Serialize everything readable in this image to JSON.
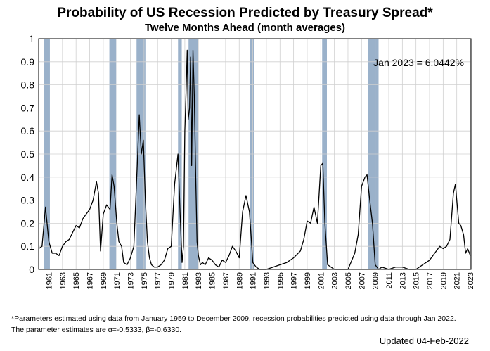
{
  "chart_data": {
    "type": "area",
    "title": "Probability of US Recession Predicted by Treasury Spread*",
    "subtitle": "Twelve Months Ahead (month averages)",
    "xlabel": "",
    "ylabel": "",
    "ylim": [
      0,
      1
    ],
    "xlim": [
      1959.5,
      2023.1
    ],
    "yticks": [
      "0",
      "0.1",
      "0.2",
      "0.3",
      "0.4",
      "0.5",
      "0.6",
      "0.7",
      "0.8",
      "0.9",
      "1"
    ],
    "xticks": [
      "1961",
      "1963",
      "1965",
      "1967",
      "1969",
      "1971",
      "1973",
      "1975",
      "1977",
      "1979",
      "1981",
      "1983",
      "1985",
      "1987",
      "1989",
      "1991",
      "1993",
      "1995",
      "1997",
      "1999",
      "2001",
      "2003",
      "2005",
      "2007",
      "2009",
      "2011",
      "2013",
      "2015",
      "2017",
      "2019",
      "2021",
      "2023"
    ],
    "grid": true,
    "annotation": "Jan 2023 = 6.0442%",
    "recessions": [
      [
        1960.3,
        1961.15
      ],
      [
        1969.9,
        1970.9
      ],
      [
        1973.9,
        1975.2
      ],
      [
        1980.0,
        1980.55
      ],
      [
        1981.55,
        1982.9
      ],
      [
        1990.55,
        1991.2
      ],
      [
        2001.2,
        2001.9
      ],
      [
        2007.95,
        2009.5
      ]
    ],
    "series": [
      {
        "x": [
          1959.5,
          1960.0,
          1960.5,
          1961.0,
          1961.5,
          1962.0,
          1962.5,
          1963.0,
          1963.5,
          1964.0,
          1964.5,
          1965.0,
          1965.5,
          1966.0,
          1966.5,
          1967.0,
          1967.5,
          1968.0,
          1968.3,
          1968.6,
          1969.0,
          1969.5,
          1970.0,
          1970.3,
          1970.6,
          1971.0,
          1971.3,
          1971.7,
          1972.0,
          1972.5,
          1973.0,
          1973.5,
          1974.0,
          1974.3,
          1974.6,
          1974.9,
          1975.2,
          1975.5,
          1975.8,
          1976.1,
          1976.5,
          1977.0,
          1977.5,
          1978.0,
          1978.5,
          1979.0,
          1979.5,
          1980.0,
          1980.3,
          1980.6,
          1980.8,
          1981.0,
          1981.2,
          1981.35,
          1981.5,
          1981.7,
          1981.85,
          1982.0,
          1982.2,
          1982.4,
          1982.6,
          1982.8,
          1983.0,
          1983.3,
          1983.6,
          1984.0,
          1984.5,
          1985.0,
          1985.5,
          1986.0,
          1986.5,
          1987.0,
          1987.5,
          1988.0,
          1988.5,
          1989.0,
          1989.5,
          1990.0,
          1990.5,
          1990.8,
          1991.0,
          1991.5,
          1992.0,
          1993.0,
          1994.0,
          1995.0,
          1996.0,
          1997.0,
          1998.0,
          1998.5,
          1999.0,
          1999.5,
          2000.0,
          2000.5,
          2001.0,
          2001.3,
          2001.6,
          2002.0,
          2003.0,
          2004.0,
          2005.0,
          2006.0,
          2006.5,
          2007.0,
          2007.5,
          2007.8,
          2008.2,
          2008.6,
          2009.0,
          2009.5,
          2010.0,
          2011.0,
          2012.0,
          2013.0,
          2014.0,
          2015.0,
          2016.0,
          2017.0,
          2018.0,
          2018.5,
          2019.0,
          2019.5,
          2020.0,
          2020.5,
          2020.8,
          2021.0,
          2021.3,
          2021.6,
          2022.0,
          2022.3,
          2022.6,
          2023.0
        ],
        "values": [
          0.09,
          0.1,
          0.27,
          0.12,
          0.07,
          0.07,
          0.06,
          0.1,
          0.12,
          0.13,
          0.16,
          0.19,
          0.18,
          0.22,
          0.24,
          0.26,
          0.3,
          0.38,
          0.33,
          0.08,
          0.24,
          0.28,
          0.26,
          0.41,
          0.36,
          0.2,
          0.12,
          0.1,
          0.03,
          0.02,
          0.05,
          0.1,
          0.45,
          0.67,
          0.5,
          0.56,
          0.3,
          0.12,
          0.05,
          0.02,
          0.01,
          0.01,
          0.02,
          0.04,
          0.09,
          0.1,
          0.37,
          0.5,
          0.25,
          0.03,
          0.1,
          0.6,
          0.78,
          0.95,
          0.65,
          0.7,
          0.92,
          0.45,
          0.95,
          0.75,
          0.4,
          0.12,
          0.06,
          0.02,
          0.03,
          0.02,
          0.05,
          0.04,
          0.02,
          0.01,
          0.04,
          0.03,
          0.06,
          0.1,
          0.08,
          0.05,
          0.25,
          0.32,
          0.25,
          0.12,
          0.03,
          0.01,
          0.0,
          0.0,
          0.01,
          0.02,
          0.03,
          0.05,
          0.08,
          0.13,
          0.21,
          0.2,
          0.27,
          0.2,
          0.45,
          0.46,
          0.2,
          0.02,
          0.0,
          0.0,
          0.0,
          0.07,
          0.15,
          0.36,
          0.4,
          0.41,
          0.3,
          0.2,
          0.02,
          0.0,
          0.01,
          0.0,
          0.01,
          0.01,
          0.0,
          0.0,
          0.02,
          0.04,
          0.08,
          0.1,
          0.09,
          0.1,
          0.13,
          0.33,
          0.37,
          0.3,
          0.2,
          0.19,
          0.15,
          0.07,
          0.09,
          0.06
        ]
      }
    ]
  },
  "notes": {
    "line1": "*Parameters estimated using data from January 1959 to December 2009, recession probabilities predicted using data through Jan 2022.",
    "line2": "The parameter estimates are α=-0.5333, β=-0.6330.",
    "updated": "Updated 04-Feb-2022"
  }
}
